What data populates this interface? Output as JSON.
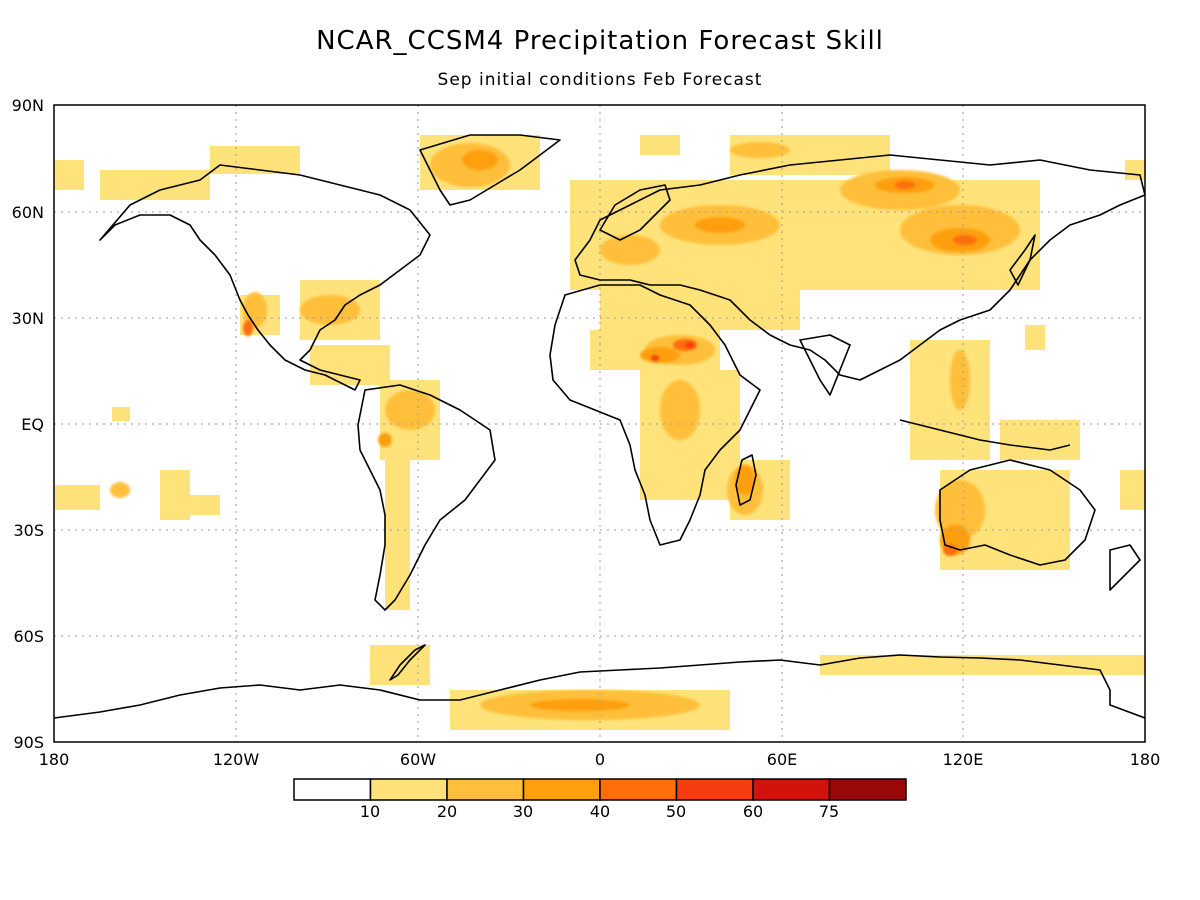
{
  "map": {
    "title": "NCAR_CCSM4 Precipitation Forecast Skill",
    "subtitle": "Sep initial conditions  Feb Forecast",
    "lat_labels": [
      "90N",
      "60N",
      "30N",
      "EQ",
      "30S",
      "60S",
      "90S"
    ],
    "lon_labels": [
      "180",
      "120W",
      "60W",
      "0",
      "60E",
      "120E",
      "180"
    ],
    "grid": true
  },
  "colorbar": {
    "labels": [
      "10",
      "20",
      "30",
      "40",
      "50",
      "60",
      "75"
    ],
    "colors": [
      "#ffffff",
      "#ffe27a",
      "#ffbf3a",
      "#ff9f0f",
      "#ff6e08",
      "#f63d0f",
      "#d2130b",
      "#9b0808"
    ]
  },
  "skill_regions": [
    {
      "name": "north-america-west",
      "level": 2
    },
    {
      "name": "mexico-west-coast",
      "level": 4
    },
    {
      "name": "greenland",
      "level": 2
    },
    {
      "name": "siberia-north",
      "level": 3
    },
    {
      "name": "central-asia",
      "level": 3
    },
    {
      "name": "sahel-north-africa",
      "level": 3
    },
    {
      "name": "east-africa",
      "level": 2
    },
    {
      "name": "madagascar-east",
      "level": 3
    },
    {
      "name": "australia-southwest",
      "level": 3
    },
    {
      "name": "antarctica-atlantic-sector",
      "level": 2
    },
    {
      "name": "amazon-west",
      "level": 2
    },
    {
      "name": "arctic-east",
      "level": 2
    }
  ]
}
